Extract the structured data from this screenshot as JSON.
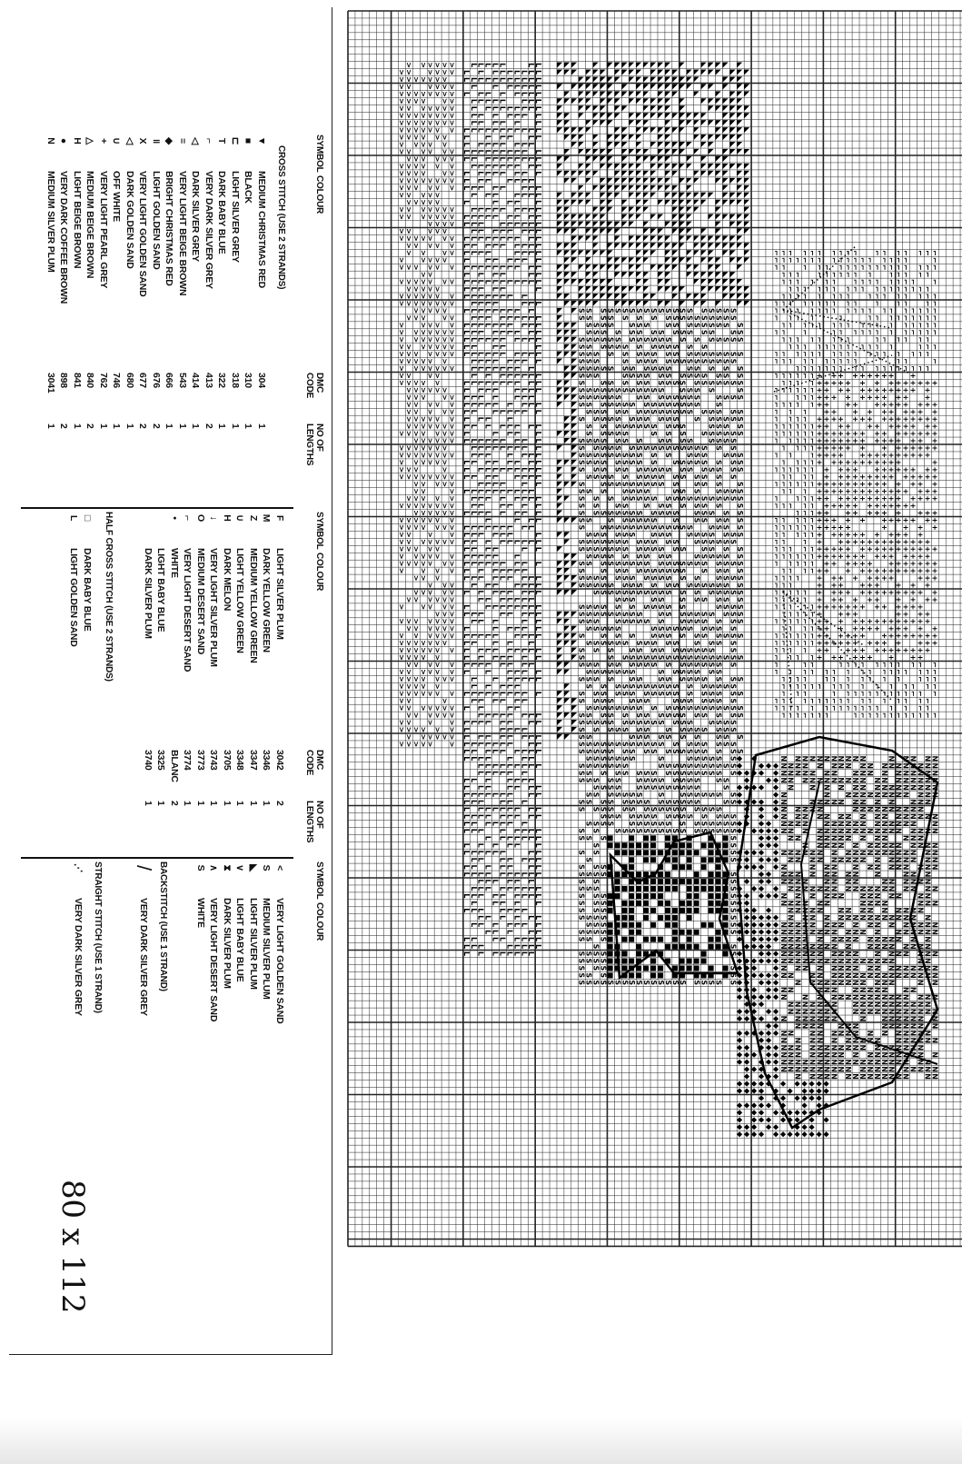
{
  "key": {
    "headers": {
      "symbol": "SYMBOL",
      "colour": "COLOUR",
      "code": "DMC CODE",
      "lengths": "NO OF LENGTHS"
    },
    "cross_stitch_title": "CROSS STITCH (USE 2 STRANDS)",
    "cross_stitch": [
      {
        "symbol": "▼",
        "colour": "MEDIUM CHRISTMAS RED",
        "code": "304",
        "lengths": "1"
      },
      {
        "symbol": "■",
        "colour": "BLACK",
        "code": "310",
        "lengths": "1"
      },
      {
        "symbol": "⊏",
        "colour": "LIGHT SILVER GREY",
        "code": "318",
        "lengths": "1"
      },
      {
        "symbol": "T",
        "colour": "DARK BABY BLUE",
        "code": "322",
        "lengths": "1"
      },
      {
        "symbol": "⌐",
        "colour": "VERY DARK SILVER GREY",
        "code": "413",
        "lengths": "2"
      },
      {
        "symbol": "◁",
        "colour": "DARK SILVER GREY",
        "code": "414",
        "lengths": "1"
      },
      {
        "symbol": "=",
        "colour": "VERY LIGHT BEIGE BROWN",
        "code": "543",
        "lengths": "1"
      },
      {
        "symbol": "◆",
        "colour": "BRIGHT CHRISTMAS RED",
        "code": "666",
        "lengths": "1"
      },
      {
        "symbol": "॥",
        "colour": "LIGHT GOLDEN SAND",
        "code": "676",
        "lengths": "2"
      },
      {
        "symbol": "X",
        "colour": "VERY LIGHT GOLDEN SAND",
        "code": "677",
        "lengths": "2"
      },
      {
        "symbol": "◁",
        "colour": "DARK GOLDEN SAND",
        "code": "680",
        "lengths": "1"
      },
      {
        "symbol": "∪",
        "colour": "OFF WHITE",
        "code": "746",
        "lengths": "1"
      },
      {
        "symbol": "+",
        "colour": "VERY LIGHT PEARL GREY",
        "code": "762",
        "lengths": "1"
      },
      {
        "symbol": "△",
        "colour": "MEDIUM BEIGE BROWN",
        "code": "840",
        "lengths": "2"
      },
      {
        "symbol": "H",
        "colour": "LIGHT BEIGE BROWN",
        "code": "841",
        "lengths": "1"
      },
      {
        "symbol": "●",
        "colour": "VERY DARK COFFEE BROWN",
        "code": "898",
        "lengths": "2"
      },
      {
        "symbol": "N",
        "colour": "MEDIUM SILVER PLUM",
        "code": "3041",
        "lengths": "1"
      }
    ],
    "cross_stitch_2": [
      {
        "symbol": "F",
        "colour": "LIGHT SILVER PLUM",
        "code": "3042",
        "lengths": "2"
      },
      {
        "symbol": "M",
        "colour": "DARK YELLOW GREEN",
        "code": "3346",
        "lengths": "1"
      },
      {
        "symbol": "Z",
        "colour": "MEDIUM YELLOW GREEN",
        "code": "3347",
        "lengths": "1"
      },
      {
        "symbol": "∪",
        "colour": "LIGHT YELLOW GREEN",
        "code": "3348",
        "lengths": "1"
      },
      {
        "symbol": "H",
        "colour": "DARK MELON",
        "code": "3705",
        "lengths": "1"
      },
      {
        "symbol": "↓",
        "colour": "VERY LIGHT SILVER PLUM",
        "code": "3743",
        "lengths": "1"
      },
      {
        "symbol": "O",
        "colour": "MEDIUM DESERT SAND",
        "code": "3773",
        "lengths": "1"
      },
      {
        "symbol": "⌐",
        "colour": "VERY LIGHT DESERT SAND",
        "code": "3774",
        "lengths": "1"
      },
      {
        "symbol": "•",
        "colour": "WHITE",
        "code": "BLANC",
        "lengths": "2"
      },
      {
        "symbol": "",
        "colour": "LIGHT BABY BLUE",
        "code": "3325",
        "lengths": "1"
      },
      {
        "symbol": "",
        "colour": "DARK SILVER PLUM",
        "code": "3740",
        "lengths": "1"
      }
    ],
    "half_cross_title": "HALF CROSS STITCH (USE 2 STRANDS)",
    "half_cross": [
      {
        "symbol": "□",
        "colour": "DARK BABY BLUE"
      },
      {
        "symbol": "L",
        "colour": "LIGHT GOLDEN SAND"
      }
    ],
    "half_cross_2": [
      {
        "symbol": "<",
        "colour": "VERY LIGHT GOLDEN SAND"
      },
      {
        "symbol": "S",
        "colour": "MEDIUM SILVER PLUM"
      },
      {
        "symbol": "◣",
        "colour": "LIGHT SILVER PLUM"
      },
      {
        "symbol": "∨",
        "colour": "LIGHT BABY BLUE"
      },
      {
        "symbol": "⧗",
        "colour": "DARK SILVER PLUM"
      },
      {
        "symbol": "∧",
        "colour": "VERY LIGHT DESERT SAND"
      },
      {
        "symbol": "S",
        "colour": "WHITE"
      }
    ],
    "backstitch_title": "BACKSTITCH (USE 1 STRAND)",
    "backstitch": {
      "symbol": "/",
      "colour": "VERY DARK SILVER GREY"
    },
    "straight_title": "STRAIGHT STITCH (USE 1 STRAND)",
    "straight": {
      "symbol": "⋰",
      "colour": "VERY DARK SILVER GREY"
    },
    "handwritten_note": "80 x 112"
  }
}
